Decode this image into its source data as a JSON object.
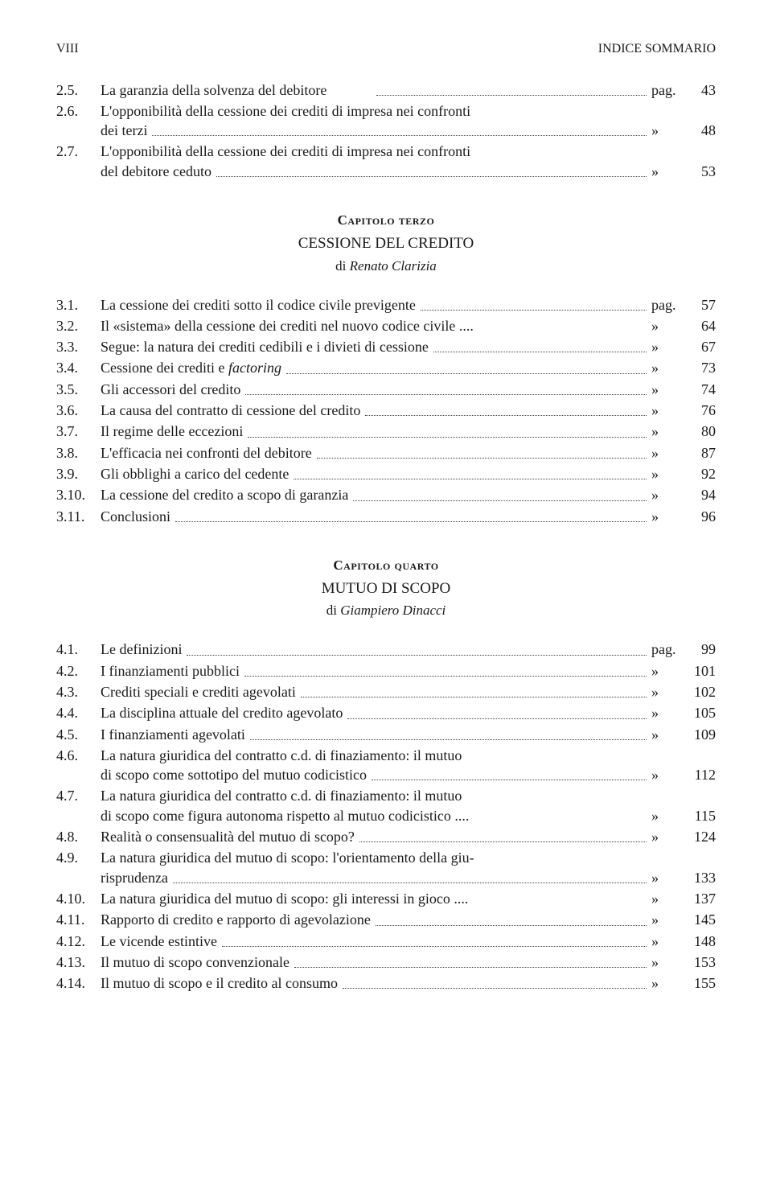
{
  "header": {
    "left": "VIII",
    "right": "INDICE SOMMARIO"
  },
  "sec1": {
    "e1": {
      "n": "2.5.",
      "t": "La garanzia della solvenza del debitore",
      "s": "pag.",
      "p": "43"
    },
    "e2": {
      "n": "2.6.",
      "t": "L'opponibilità della cessione dei crediti di impresa nei confronti dei terzi",
      "s": "»",
      "p": "48"
    },
    "e3": {
      "n": "2.7.",
      "t": "L'opponibilità della cessione dei crediti di impresa nei confronti del debitore ceduto",
      "s": "»",
      "p": "53"
    }
  },
  "ch3": {
    "num": "Capitolo terzo",
    "title": "CESSIONE DEL CREDITO",
    "author_pre": "di ",
    "author": "Renato Clarizia"
  },
  "sec2": {
    "e1": {
      "n": "3.1.",
      "t": "La cessione dei crediti sotto il codice civile previgente",
      "s": "pag.",
      "p": "57"
    },
    "e2": {
      "n": "3.2.",
      "t": "Il «sistema» della cessione dei crediti nel nuovo codice civile",
      "after": "....",
      "s": "»",
      "p": "64"
    },
    "e3": {
      "n": "3.3.",
      "t": "Segue: la natura dei crediti cedibili e i divieti di cessione",
      "s": "»",
      "p": "67"
    },
    "e4": {
      "n": "3.4.",
      "t": "Cessione dei crediti e ",
      "em": "factoring",
      "s": "»",
      "p": "73"
    },
    "e5": {
      "n": "3.5.",
      "t": "Gli accessori del credito",
      "s": "»",
      "p": "74"
    },
    "e6": {
      "n": "3.6.",
      "t": "La causa del contratto di cessione del credito",
      "s": "»",
      "p": "76"
    },
    "e7": {
      "n": "3.7.",
      "t": "Il regime delle eccezioni",
      "s": "»",
      "p": "80"
    },
    "e8": {
      "n": "3.8.",
      "t": "L'efficacia nei confronti del debitore",
      "s": "»",
      "p": "87"
    },
    "e9": {
      "n": "3.9.",
      "t": "Gli obblighi a carico del cedente",
      "s": "»",
      "p": "92"
    },
    "e10": {
      "n": "3.10.",
      "t": "La cessione del credito a scopo di garanzia",
      "s": "»",
      "p": "94"
    },
    "e11": {
      "n": "3.11.",
      "t": "Conclusioni",
      "s": "»",
      "p": "96"
    }
  },
  "ch4": {
    "num": "Capitolo quarto",
    "title": "MUTUO DI SCOPO",
    "author_pre": "di ",
    "author": "Giampiero Dinacci"
  },
  "sec3": {
    "e1": {
      "n": "4.1.",
      "t": "Le definizioni",
      "s": "pag.",
      "p": "99"
    },
    "e2": {
      "n": "4.2.",
      "t": "I finanziamenti pubblici",
      "s": "»",
      "p": "101"
    },
    "e3": {
      "n": "4.3.",
      "t": "Crediti speciali e crediti agevolati",
      "s": "»",
      "p": "102"
    },
    "e4": {
      "n": "4.4.",
      "t": "La disciplina attuale del credito agevolato",
      "s": "»",
      "p": "105"
    },
    "e5": {
      "n": "4.5.",
      "t": "I finanziamenti agevolati",
      "s": "»",
      "p": "109"
    },
    "e6": {
      "n": "4.6.",
      "t": "La natura giuridica del contratto c.d. di finaziamento: il mutuo di scopo come sottotipo del mutuo codicistico",
      "s": "»",
      "p": "112"
    },
    "e7": {
      "n": "4.7.",
      "t": "La natura giuridica del contratto c.d. di finaziamento: il mutuo di scopo come figura autonoma rispetto al mutuo codicistico",
      "after": "....",
      "s": "»",
      "p": "115"
    },
    "e8": {
      "n": "4.8.",
      "t": "Realità o consensualità del mutuo di scopo?",
      "s": "»",
      "p": "124"
    },
    "e9": {
      "n": "4.9.",
      "t": "La natura giuridica del mutuo di scopo: l'orientamento della giurisprudenza",
      "s": "»",
      "p": "133"
    },
    "e10": {
      "n": "4.10.",
      "t": "La natura giuridica del mutuo di scopo: gli interessi in gioco",
      "after": "....",
      "s": "»",
      "p": "137"
    },
    "e11": {
      "n": "4.11.",
      "t": "Rapporto di credito e rapporto di agevolazione",
      "s": "»",
      "p": "145"
    },
    "e12": {
      "n": "4.12.",
      "t": "Le vicende estintive",
      "s": "»",
      "p": "148"
    },
    "e13": {
      "n": "4.13.",
      "t": "Il mutuo di scopo convenzionale",
      "s": "»",
      "p": "153"
    },
    "e14": {
      "n": "4.14.",
      "t": "Il mutuo di scopo e il credito al consumo",
      "s": "»",
      "p": "155"
    }
  }
}
